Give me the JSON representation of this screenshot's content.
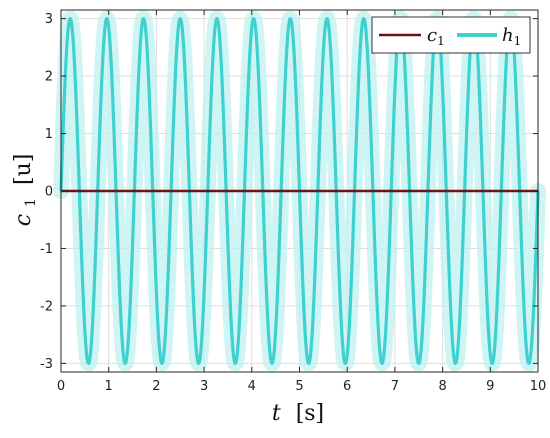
{
  "chart_data": {
    "type": "line",
    "xlabel": {
      "var": "t",
      "unit": "[s]"
    },
    "ylabel": {
      "var": "c",
      "sub": "1",
      "unit": "[u]"
    },
    "xlim": [
      0,
      10
    ],
    "ylim": [
      -3.15,
      3.15
    ],
    "x_ticks": [
      0,
      1,
      2,
      3,
      4,
      5,
      6,
      7,
      8,
      9,
      10
    ],
    "y_ticks": [
      -3,
      -2,
      -1,
      0,
      1,
      2,
      3
    ],
    "grid": true,
    "legend_position": "top-right",
    "series": [
      {
        "name": "c",
        "name_sub": "1",
        "color": "#6b1414",
        "description": "constant zero line",
        "x": [
          0,
          10
        ],
        "y": [
          0,
          0
        ]
      },
      {
        "name": "h",
        "name_sub": "1",
        "color": "#3fd0d0",
        "band_color": "#bff0f0",
        "function": "3*sin(2*pi*f*t)",
        "amplitude": 3,
        "frequency_hz": 1.3,
        "x": [
          0,
          0.19,
          0.38,
          0.58,
          0.77,
          0.96,
          1.15,
          1.35,
          1.54,
          1.73,
          1.92,
          2.12,
          2.31,
          2.5,
          2.69,
          2.88,
          3.08,
          3.27,
          3.46,
          3.65,
          3.85,
          4.04,
          4.23,
          4.42,
          4.62,
          4.81,
          5.0,
          5.19,
          5.38,
          5.58,
          5.77,
          5.96,
          6.15,
          6.35,
          6.54,
          6.73,
          6.92,
          7.12,
          7.31,
          7.5,
          7.69,
          7.88,
          8.08,
          8.27,
          8.46,
          8.65,
          8.85,
          9.04,
          9.23,
          9.42,
          9.62,
          9.81,
          10.0
        ],
        "y": [
          0,
          3,
          0,
          -3,
          0,
          3,
          0,
          -3,
          0,
          3,
          0,
          -3,
          0,
          3,
          0,
          -3,
          0,
          3,
          0,
          -3,
          0,
          3,
          0,
          -3,
          0,
          3,
          0,
          -3,
          0,
          3,
          0,
          -3,
          0,
          3,
          0,
          -3,
          0,
          3,
          0,
          -3,
          0,
          3,
          0,
          -3,
          0,
          3,
          0,
          -3,
          0,
          3,
          0,
          -3,
          0
        ]
      }
    ]
  }
}
